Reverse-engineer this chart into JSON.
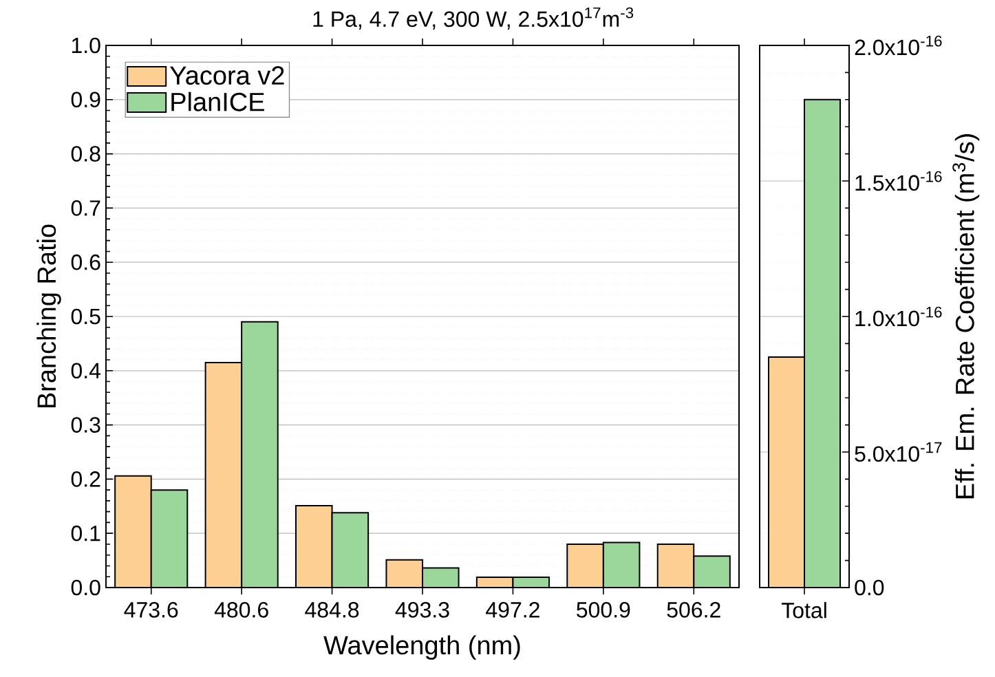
{
  "chart_data": [
    {
      "type": "bar",
      "title": "1 Pa, 4.7 eV, 300 W, 2.5x10$^{17}$m$^{-3}$",
      "xlabel": "Wavelength (nm)",
      "ylabel": "Branching Ratio",
      "categories": [
        "473.6",
        "480.6",
        "484.8",
        "493.3",
        "497.2",
        "500.9",
        "506.2"
      ],
      "series": [
        {
          "name": "Yacora v2",
          "color": "#fecf92",
          "values": [
            0.206,
            0.415,
            0.151,
            0.051,
            0.019,
            0.08,
            0.08
          ]
        },
        {
          "name": "PlanICE",
          "color": "#9bd69b",
          "values": [
            0.18,
            0.49,
            0.138,
            0.036,
            0.019,
            0.083,
            0.058
          ]
        }
      ],
      "ylim": [
        0,
        1.0
      ],
      "yticks": [
        {
          "value": 0,
          "label": "0.0"
        },
        0.1,
        0.2,
        0.3,
        0.4,
        0.5,
        0.6,
        0.7,
        0.8,
        0.9,
        {
          "value": 1.0,
          "label": "1.0"
        }
      ],
      "grid": "y",
      "legend": "top left"
    },
    {
      "type": "bar",
      "y2label": "Eff. Em. Rate Coefficient (m$^{3}$/s)",
      "categories": [
        "Total"
      ],
      "series": [
        {
          "color": "#fecf92",
          "axis": "y2",
          "values": [
            8.5e-17
          ]
        },
        {
          "color": "#9bd69b",
          "axis": "y2",
          "values": [
            1.8e-16
          ]
        }
      ],
      "y2lim": [
        0,
        2e-16
      ],
      "y2ticks": [
        {
          "value": 0,
          "label": "0.0"
        },
        {
          "value": 5e-17,
          "label": "5.0x10$^{-17}$"
        },
        {
          "value": 1e-16,
          "label": "1.0x10$^{-16}$"
        },
        {
          "value": 1.5e-16,
          "label": "1.5x10$^{-16}$"
        },
        {
          "value": 2e-16,
          "label": "2.0x10$^{-16}$"
        }
      ],
      "grid": "y"
    }
  ]
}
